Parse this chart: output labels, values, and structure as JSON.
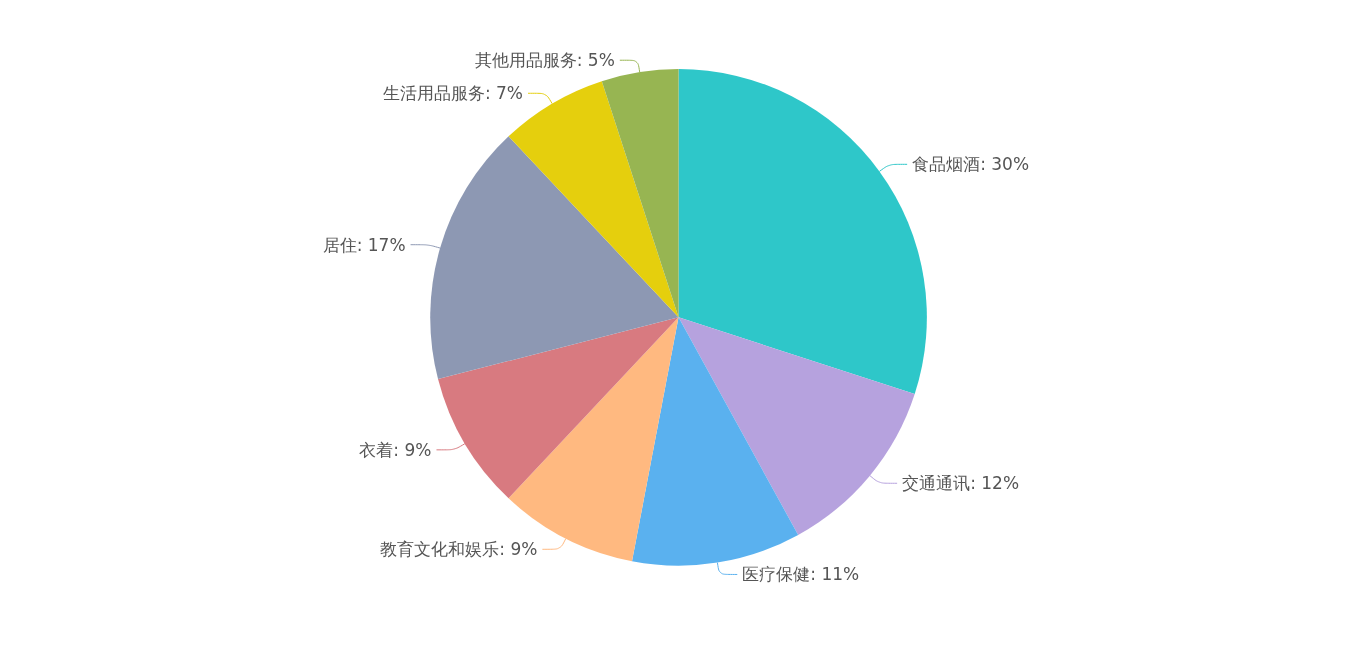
{
  "chart_data": {
    "type": "pie",
    "categories": [
      "食品烟酒",
      "交通通讯",
      "医疗保健",
      "教育文化和娱乐",
      "衣着",
      "居住",
      "生活用品服务",
      "其他用品服务"
    ],
    "values": [
      30,
      12,
      11,
      9,
      9,
      17,
      7,
      5
    ],
    "colors": [
      "#2ec7c9",
      "#b6a2de",
      "#5ab1ef",
      "#ffb980",
      "#d87a80",
      "#8d98b3",
      "#e5cf0d",
      "#97b552"
    ],
    "value_labels": [
      "30%",
      "12%",
      "11%",
      "9%",
      "9%",
      "17%",
      "7%",
      "5%"
    ],
    "legend": false
  }
}
